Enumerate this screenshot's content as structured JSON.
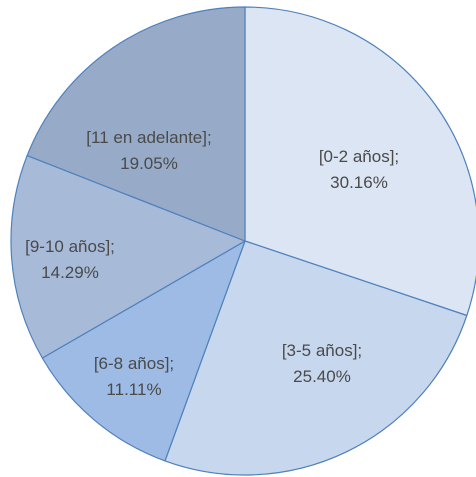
{
  "chart_data": {
    "type": "pie",
    "title": "",
    "start_angle_deg": 90,
    "direction": "clockwise",
    "slices": [
      {
        "category": "[0-2 años]",
        "value": 30.16,
        "value_label": "30.16%",
        "color": "#dbe5f3"
      },
      {
        "category": "[3-5 años]",
        "value": 25.4,
        "value_label": "25.40%",
        "color": "#c7d7ee"
      },
      {
        "category": "[6-8 años]",
        "value": 11.11,
        "value_label": "11.11%",
        "color": "#9dbbe4"
      },
      {
        "category": "[9-10 años]",
        "value": 14.29,
        "value_label": "14.29%",
        "color": "#a7bad8"
      },
      {
        "category": "[11 en adelante]",
        "value": 19.05,
        "value_label": "19.05%",
        "color": "#97abc8"
      }
    ],
    "label_separator": ";"
  }
}
